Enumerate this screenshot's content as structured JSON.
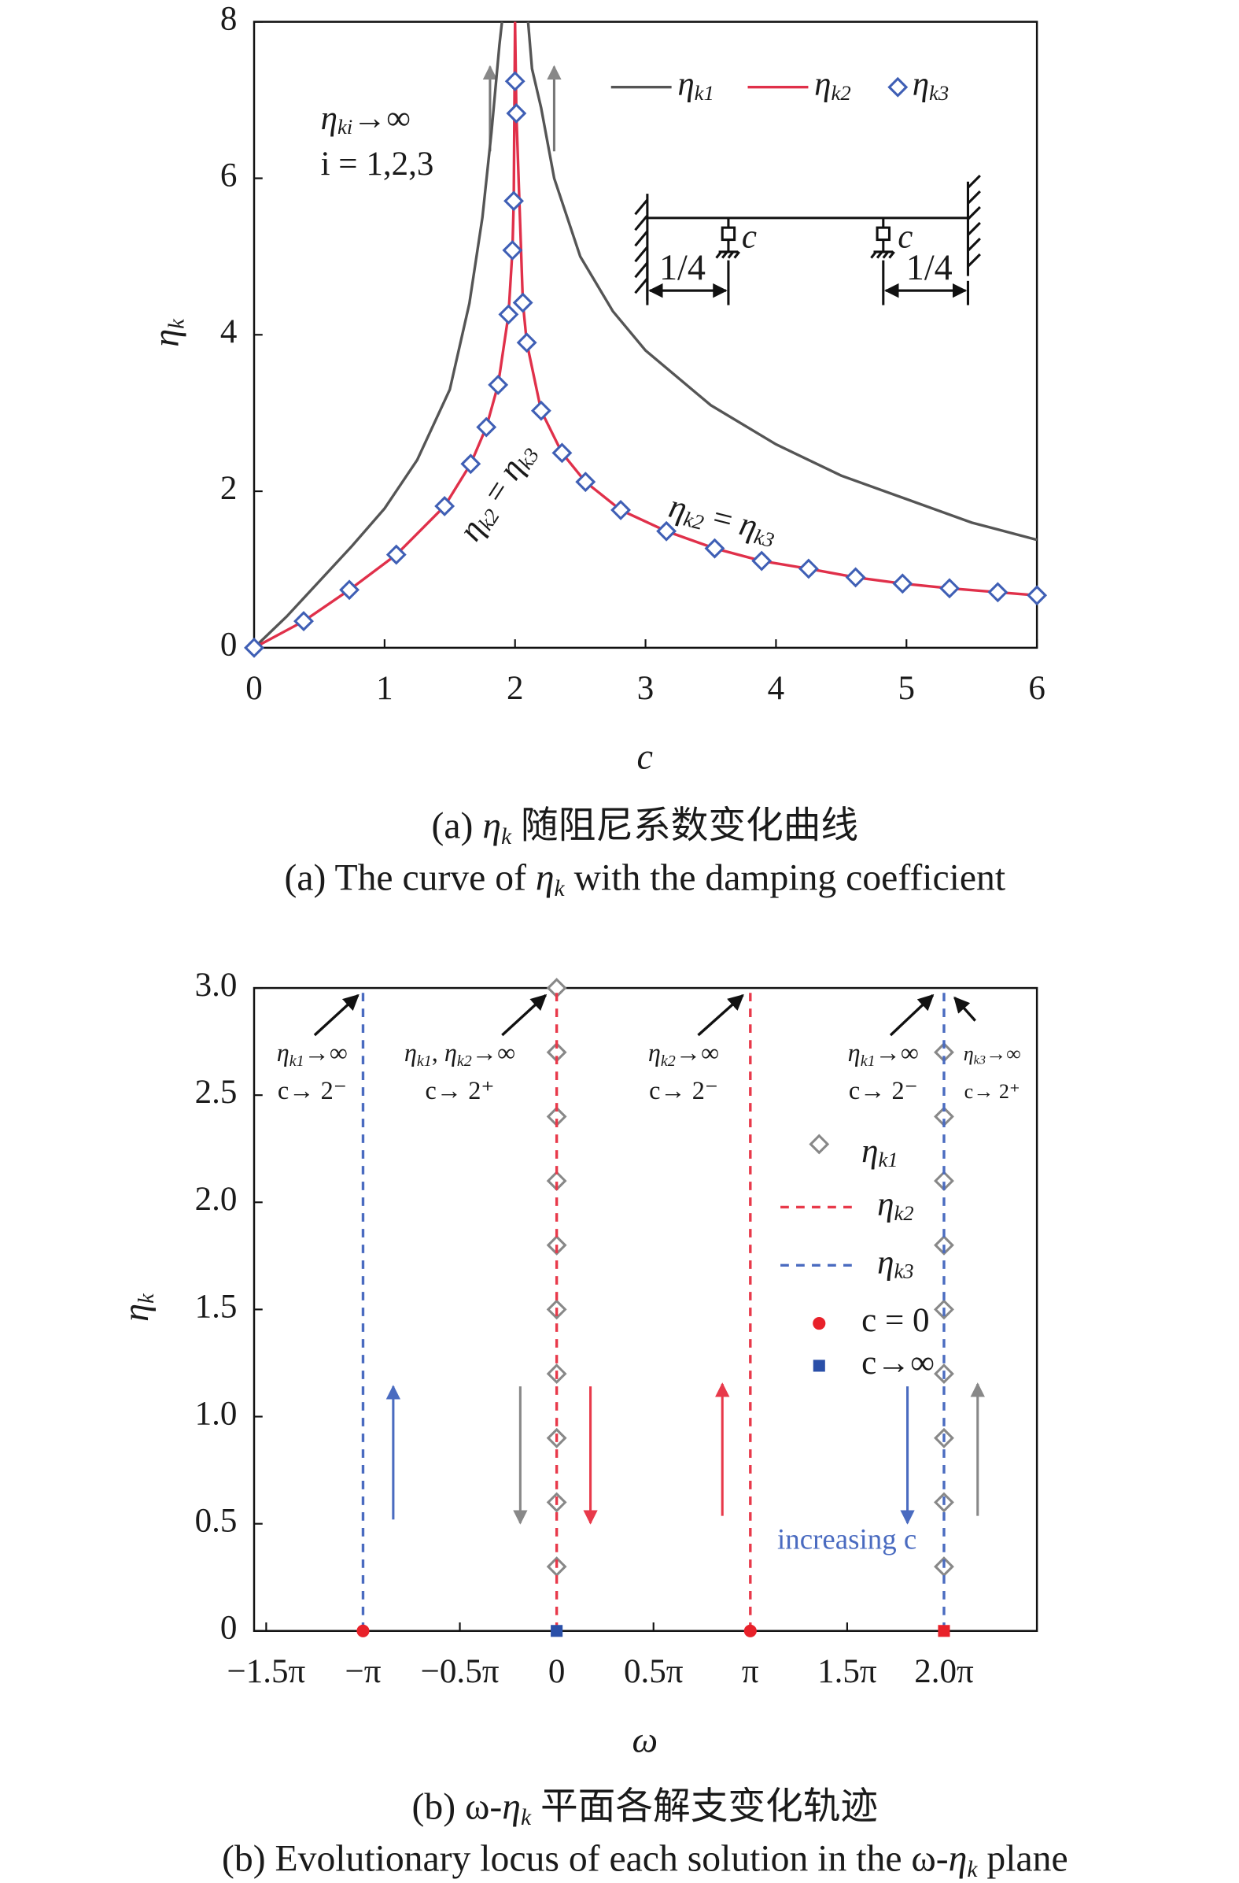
{
  "chart_data": [
    {
      "type": "line",
      "xlabel": "c",
      "ylabel": "ηk",
      "captions": [
        "(a) ηk 随阻尼系数变化曲线",
        "(a) The curve of ηk with the damping coefficient"
      ],
      "xlim": [
        0,
        6
      ],
      "ylim": [
        0,
        8
      ],
      "xticks": [
        0,
        1,
        2,
        3,
        4,
        5,
        6
      ],
      "yticks": [
        0,
        2,
        4,
        6,
        8
      ],
      "series": [
        {
          "name": "ηk1",
          "color": "#555555",
          "x": [
            0,
            0.25,
            0.5,
            0.75,
            1,
            1.25,
            1.5,
            1.65,
            1.75,
            1.82,
            1.88,
            1.9,
            null,
            2.1,
            2.13,
            2.2,
            2.3,
            2.5,
            2.75,
            3,
            3.5,
            4,
            4.5,
            5,
            5.5,
            6
          ],
          "values": [
            0,
            0.4,
            0.85,
            1.3,
            1.78,
            2.4,
            3.3,
            4.4,
            5.5,
            6.6,
            7.7,
            8,
            null,
            8,
            7.4,
            6.9,
            6.0,
            5.0,
            4.3,
            3.8,
            3.1,
            2.6,
            2.2,
            1.9,
            1.6,
            1.38
          ]
        },
        {
          "name": "ηk2",
          "color": "#e0304a",
          "x": [
            0,
            0.38,
            0.73,
            1.09,
            1.46,
            1.66,
            1.78,
            1.87,
            1.95,
            1.98,
            1.99,
            2.0,
            2.01,
            2.06,
            2.09,
            2.2,
            2.36,
            2.54,
            2.81,
            3.16,
            3.53,
            3.89,
            4.25,
            4.61,
            4.97,
            5.33,
            5.7,
            6.0
          ],
          "values": [
            0,
            0.34,
            0.74,
            1.19,
            1.81,
            2.35,
            2.82,
            3.36,
            4.26,
            5.08,
            5.71,
            8,
            6.83,
            4.41,
            3.9,
            3.03,
            2.49,
            2.12,
            1.76,
            1.49,
            1.27,
            1.11,
            1.01,
            0.9,
            0.82,
            0.76,
            0.71,
            0.67
          ]
        },
        {
          "name": "ηk3",
          "color": "#3f5fb5",
          "type": "scatter",
          "marker": "diamond",
          "x": [
            0,
            0.38,
            0.73,
            1.09,
            1.46,
            1.66,
            1.78,
            1.87,
            1.95,
            1.98,
            1.99,
            2.01,
            2.0,
            2.06,
            2.09,
            2.2,
            2.36,
            2.54,
            2.81,
            3.16,
            3.53,
            3.89,
            4.25,
            4.61,
            4.97,
            5.33,
            5.7,
            6.0
          ],
          "values": [
            0,
            0.34,
            0.74,
            1.19,
            1.81,
            2.35,
            2.82,
            3.36,
            4.26,
            5.08,
            5.71,
            6.83,
            7.24,
            4.41,
            3.9,
            3.03,
            2.49,
            2.12,
            1.76,
            1.49,
            1.27,
            1.11,
            1.01,
            0.9,
            0.82,
            0.76,
            0.71,
            0.67
          ]
        }
      ],
      "annotations": [
        "ηki→∞",
        "i = 1,2,3",
        "ηk2 = ηk3",
        "ηk2 = ηk3"
      ],
      "inset": [
        "c",
        "c",
        "1/4",
        "1/4"
      ]
    },
    {
      "type": "scatter",
      "xlabel": "ω",
      "ylabel": "ηk",
      "captions": [
        "(b) ω-ηk 平面各解支变化轨迹",
        "(b) Evolutionary locus of each solution in the ω-ηk plane"
      ],
      "xlim": [
        -1.5625,
        2.48
      ],
      "ylim": [
        0,
        3
      ],
      "xticks": [
        {
          "value": -1.5,
          "label": "−1.5π"
        },
        {
          "value": -1,
          "label": "−π"
        },
        {
          "value": -0.5,
          "label": "−0.5π"
        },
        0,
        {
          "value": 0.5,
          "label": "0.5π"
        },
        {
          "value": 1,
          "label": "π"
        },
        {
          "value": 1.5,
          "label": "1.5π"
        },
        {
          "value": 2,
          "label": "2.0π"
        }
      ],
      "yticks": [
        0,
        0.5,
        {
          "value": 1,
          "label": "1.0"
        },
        1.5,
        {
          "value": 2,
          "label": "2.0"
        },
        2.5,
        {
          "value": 3,
          "label": "3.0"
        }
      ],
      "series": [
        {
          "name": "ηk1",
          "color": "#888888",
          "type": "scatter",
          "marker": "diamond",
          "x": [
            0,
            0,
            0,
            0,
            0,
            0,
            0,
            0,
            0,
            0,
            2,
            2,
            2,
            2,
            2,
            2,
            2,
            2,
            2
          ],
          "values": [
            0.3,
            0.6,
            0.9,
            1.2,
            1.5,
            1.8,
            2.1,
            2.4,
            2.7,
            3.0,
            0.3,
            0.6,
            0.9,
            1.2,
            1.5,
            1.8,
            2.1,
            2.4,
            2.7
          ]
        },
        {
          "name": "ηk2",
          "color": "#e8394a",
          "type": "line",
          "dash": true,
          "x": [
            0,
            0,
            null,
            1,
            1
          ],
          "values": [
            0,
            3,
            null,
            0,
            3
          ]
        },
        {
          "name": "ηk3",
          "color": "#4a6bc0",
          "type": "line",
          "dash": true,
          "x": [
            -1,
            -1,
            null,
            2,
            2
          ],
          "values": [
            0,
            3,
            null,
            0,
            3
          ]
        },
        {
          "name": "c = 0",
          "color": "#e8212a",
          "type": "scatter",
          "marker": "circle",
          "x": [
            -1,
            1
          ],
          "values": [
            0,
            0
          ]
        },
        {
          "name": "c→∞",
          "color": "#2a4fa8",
          "type": "scatter",
          "marker": "square",
          "x": [
            0,
            2
          ],
          "values": [
            0,
            0
          ],
          "colors": [
            "#2a4fa8",
            "#e8212a"
          ]
        }
      ],
      "annotations": [
        "ηk1→∞",
        "c→ 2⁻",
        "ηk1, ηk2→∞",
        "c→ 2⁺",
        "ηk2→∞",
        "c→ 2⁻",
        "ηk1→∞",
        "c→ 2⁻",
        "ηk3→∞",
        "c→ 2⁺",
        "increasing c"
      ]
    }
  ]
}
